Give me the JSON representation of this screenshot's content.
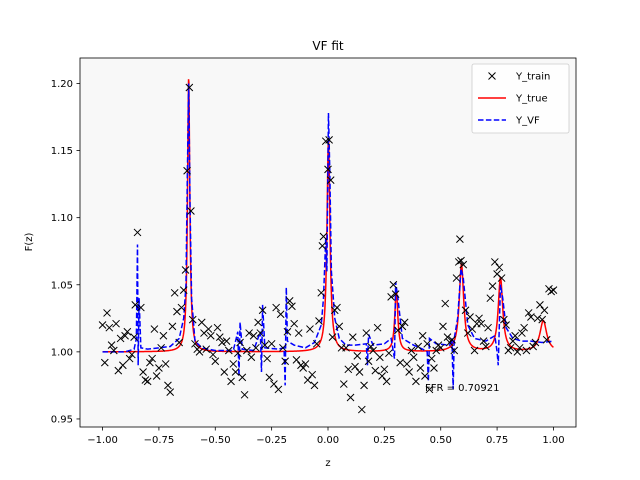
{
  "chart_data": {
    "type": "line",
    "title": "VF fit",
    "xlabel": "z",
    "ylabel": "F(z)",
    "xlim": [
      -1.1,
      1.1
    ],
    "ylim": [
      0.944,
      1.219
    ],
    "xticks": [
      -1.0,
      -0.75,
      -0.5,
      -0.25,
      0.0,
      0.25,
      0.5,
      0.75,
      1.0
    ],
    "xtick_labels": [
      "−1.00",
      "−0.75",
      "−0.50",
      "−0.25",
      "0.00",
      "0.25",
      "0.50",
      "0.75",
      "1.00"
    ],
    "yticks": [
      0.95,
      1.0,
      1.05,
      1.1,
      1.15,
      1.2
    ],
    "ytick_labels": [
      "0.95",
      "1.00",
      "1.05",
      "1.10",
      "1.15",
      "1.20"
    ],
    "grid": false,
    "legend_position": "top-right",
    "background": "#f8f8f8",
    "annotation": "FFR = 0.70921",
    "annotation_pos": {
      "x": 0.43,
      "y": 0.971
    },
    "series": [
      {
        "name": "Y_train",
        "style": "markers",
        "marker": "x",
        "color": "#000000",
        "points": [
          [
            -1.0,
            1.02
          ],
          [
            -0.99,
            0.992
          ],
          [
            -0.98,
            1.029
          ],
          [
            -0.97,
            1.018
          ],
          [
            -0.96,
            1.005
          ],
          [
            -0.95,
            1.001
          ],
          [
            -0.94,
            1.021
          ],
          [
            -0.93,
            0.986
          ],
          [
            -0.92,
            1.01
          ],
          [
            -0.91,
            0.99
          ],
          [
            -0.9,
            1.012
          ],
          [
            -0.89,
            1.015
          ],
          [
            -0.88,
            0.995
          ],
          [
            -0.87,
            0.998
          ],
          [
            -0.86,
            1.011
          ],
          [
            -0.855,
            1.035
          ],
          [
            -0.845,
            1.089
          ],
          [
            -0.83,
            1.033
          ],
          [
            -0.82,
            0.985
          ],
          [
            -0.81,
            0.979
          ],
          [
            -0.8,
            0.978
          ],
          [
            -0.79,
            0.992
          ],
          [
            -0.78,
            0.995
          ],
          [
            -0.77,
            1.017
          ],
          [
            -0.76,
            0.982
          ],
          [
            -0.75,
            0.988
          ],
          [
            -0.74,
            1.003
          ],
          [
            -0.73,
            1.012
          ],
          [
            -0.72,
            0.991
          ],
          [
            -0.71,
            0.975
          ],
          [
            -0.7,
            0.97
          ],
          [
            -0.69,
            1.019
          ],
          [
            -0.68,
            1.044
          ],
          [
            -0.67,
            1.03
          ],
          [
            -0.66,
            1.007
          ],
          [
            -0.65,
            1.033
          ],
          [
            -0.64,
            1.046
          ],
          [
            -0.632,
            1.061
          ],
          [
            -0.625,
            1.135
          ],
          [
            -0.615,
            1.197
          ],
          [
            -0.608,
            1.105
          ],
          [
            -0.6,
            1.024
          ],
          [
            -0.59,
            1.006
          ],
          [
            -0.58,
            1.002
          ],
          [
            -0.57,
            1.0
          ],
          [
            -0.56,
            1.022
          ],
          [
            -0.55,
            1.014
          ],
          [
            -0.54,
            1.002
          ],
          [
            -0.53,
            1.017
          ],
          [
            -0.52,
            1.012
          ],
          [
            -0.51,
            0.998
          ],
          [
            -0.5,
            0.993
          ],
          [
            -0.49,
            1.018
          ],
          [
            -0.48,
            1.011
          ],
          [
            -0.47,
            1.007
          ],
          [
            -0.46,
            0.985
          ],
          [
            -0.45,
            1.008
          ],
          [
            -0.44,
            1.001
          ],
          [
            -0.43,
            0.978
          ],
          [
            -0.42,
            0.991
          ],
          [
            -0.41,
            0.985
          ],
          [
            -0.4,
            0.999
          ],
          [
            -0.39,
            1.007
          ],
          [
            -0.38,
            0.981
          ],
          [
            -0.37,
            0.968
          ],
          [
            -0.36,
            1.001
          ],
          [
            -0.35,
            1.014
          ],
          [
            -0.34,
            0.996
          ],
          [
            -0.33,
            1.012
          ],
          [
            -0.32,
            1.003
          ],
          [
            -0.31,
            1.022
          ],
          [
            -0.3,
            1.014
          ],
          [
            -0.29,
            1.031
          ],
          [
            -0.28,
            1.005
          ],
          [
            -0.27,
            0.995
          ],
          [
            -0.26,
            0.981
          ],
          [
            -0.25,
            1.006
          ],
          [
            -0.24,
            0.976
          ],
          [
            -0.23,
            1.033
          ],
          [
            -0.22,
            0.972
          ],
          [
            -0.21,
            1.028
          ],
          [
            -0.2,
            1.003
          ],
          [
            -0.19,
            0.993
          ],
          [
            -0.18,
            1.015
          ],
          [
            -0.17,
            1.038
          ],
          [
            -0.16,
            1.034
          ],
          [
            -0.15,
            1.021
          ],
          [
            -0.14,
            0.994
          ],
          [
            -0.13,
            1.014
          ],
          [
            -0.12,
            0.99
          ],
          [
            -0.11,
            0.988
          ],
          [
            -0.1,
            0.991
          ],
          [
            -0.09,
            0.979
          ],
          [
            -0.08,
            1.017
          ],
          [
            -0.07,
            0.983
          ],
          [
            -0.06,
            0.975
          ],
          [
            -0.05,
            1.006
          ],
          [
            -0.04,
            1.023
          ],
          [
            -0.03,
            1.044
          ],
          [
            -0.025,
            1.079
          ],
          [
            -0.02,
            1.086
          ],
          [
            -0.01,
            1.157
          ],
          [
            0.0,
            1.136
          ],
          [
            0.005,
            1.158
          ],
          [
            0.012,
            1.128
          ],
          [
            0.02,
            1.011
          ],
          [
            0.03,
            1.031
          ],
          [
            0.04,
            1.033
          ],
          [
            0.05,
            1.019
          ],
          [
            0.06,
            1.003
          ],
          [
            0.07,
            0.976
          ],
          [
            0.08,
            1.003
          ],
          [
            0.09,
            0.987
          ],
          [
            0.1,
            0.966
          ],
          [
            0.11,
            1.011
          ],
          [
            0.12,
            0.989
          ],
          [
            0.13,
            0.997
          ],
          [
            0.14,
            0.985
          ],
          [
            0.15,
            0.957
          ],
          [
            0.16,
            0.975
          ],
          [
            0.17,
            1.014
          ],
          [
            0.18,
            0.993
          ],
          [
            0.19,
            1.004
          ],
          [
            0.2,
            1.001
          ],
          [
            0.21,
            0.986
          ],
          [
            0.22,
            1.018
          ],
          [
            0.23,
            0.996
          ],
          [
            0.24,
            0.982
          ],
          [
            0.25,
            0.987
          ],
          [
            0.26,
            0.978
          ],
          [
            0.27,
            0.999
          ],
          [
            0.28,
            1.041
          ],
          [
            0.29,
            1.05
          ],
          [
            0.3,
            1.043
          ],
          [
            0.31,
            1.016
          ],
          [
            0.32,
            0.992
          ],
          [
            0.33,
            1.019
          ],
          [
            0.34,
            1.022
          ],
          [
            0.35,
            0.991
          ],
          [
            0.36,
            0.985
          ],
          [
            0.37,
            1.001
          ],
          [
            0.38,
            0.996
          ],
          [
            0.39,
            0.978
          ],
          [
            0.4,
            1.004
          ],
          [
            0.41,
            0.988
          ],
          [
            0.42,
            1.012
          ],
          [
            0.43,
            0.982
          ],
          [
            0.44,
            1.006
          ],
          [
            0.45,
            0.972
          ],
          [
            0.46,
            0.995
          ],
          [
            0.47,
            0.988
          ],
          [
            0.48,
            1.001
          ],
          [
            0.49,
            1.005
          ],
          [
            0.5,
            1.003
          ],
          [
            0.51,
            1.019
          ],
          [
            0.52,
            1.036
          ],
          [
            0.53,
            1.011
          ],
          [
            0.54,
            1.007
          ],
          [
            0.55,
            1.009
          ],
          [
            0.56,
            1.001
          ],
          [
            0.57,
            1.055
          ],
          [
            0.58,
            1.067
          ],
          [
            0.585,
            1.084
          ],
          [
            0.59,
            1.068
          ],
          [
            0.6,
            1.065
          ],
          [
            0.61,
            1.031
          ],
          [
            0.62,
            1.014
          ],
          [
            0.63,
            1.026
          ],
          [
            0.64,
            1.017
          ],
          [
            0.65,
            1.001
          ],
          [
            0.66,
            1.021
          ],
          [
            0.67,
            1.025
          ],
          [
            0.68,
            1.021
          ],
          [
            0.69,
            1.008
          ],
          [
            0.7,
            1.004
          ],
          [
            0.71,
            1.018
          ],
          [
            0.72,
            1.04
          ],
          [
            0.73,
            1.049
          ],
          [
            0.74,
            1.067
          ],
          [
            0.75,
            1.058
          ],
          [
            0.76,
            1.063
          ],
          [
            0.77,
            1.055
          ],
          [
            0.78,
            1.024
          ],
          [
            0.79,
            1.02
          ],
          [
            0.8,
            1.001
          ],
          [
            0.81,
            1.003
          ],
          [
            0.82,
            1.008
          ],
          [
            0.83,
            1.012
          ],
          [
            0.84,
            1.0
          ],
          [
            0.85,
            1.003
          ],
          [
            0.86,
            1.014
          ],
          [
            0.87,
            1.018
          ],
          [
            0.88,
            1.001
          ],
          [
            0.89,
            1.029
          ],
          [
            0.9,
            1.026
          ],
          [
            0.91,
            1.004
          ],
          [
            0.92,
            1.007
          ],
          [
            0.93,
            1.025
          ],
          [
            0.94,
            1.035
          ],
          [
            0.95,
            1.024
          ],
          [
            0.96,
            1.031
          ],
          [
            0.97,
            1.009
          ],
          [
            0.98,
            1.047
          ],
          [
            0.99,
            1.045
          ],
          [
            1.0,
            1.046
          ]
        ]
      },
      {
        "name": "Y_true",
        "style": "line",
        "color": "#ff0000",
        "base": 1.0,
        "peaks": [
          {
            "center": -0.842,
            "height": 0.0,
            "width": 0.004
          },
          {
            "center": -0.618,
            "height": 0.205,
            "width": 0.006
          },
          {
            "center": 0.002,
            "height": 0.158,
            "width": 0.008
          },
          {
            "center": 0.303,
            "height": 0.046,
            "width": 0.008
          },
          {
            "center": 0.592,
            "height": 0.065,
            "width": 0.012
          },
          {
            "center": 0.765,
            "height": 0.055,
            "width": 0.012
          },
          {
            "center": 0.955,
            "height": 0.023,
            "width": 0.018
          }
        ]
      },
      {
        "name": "Y_VF",
        "style": "dashed",
        "color": "#0000ff",
        "points": [
          [
            -1.0,
            1.0
          ],
          [
            -0.9,
            1.0
          ],
          [
            -0.86,
            1.002
          ],
          [
            -0.85,
            1.01
          ],
          [
            -0.845,
            1.08
          ],
          [
            -0.842,
            0.99
          ],
          [
            -0.838,
            1.04
          ],
          [
            -0.83,
            1.003
          ],
          [
            -0.8,
            1.002
          ],
          [
            -0.75,
            1.003
          ],
          [
            -0.7,
            1.004
          ],
          [
            -0.66,
            1.01
          ],
          [
            -0.64,
            1.025
          ],
          [
            -0.63,
            1.05
          ],
          [
            -0.624,
            1.13
          ],
          [
            -0.618,
            1.2
          ],
          [
            -0.612,
            1.11
          ],
          [
            -0.605,
            1.04
          ],
          [
            -0.59,
            1.008
          ],
          [
            -0.56,
            1.003
          ],
          [
            -0.5,
            1.001
          ],
          [
            -0.42,
            1.001
          ],
          [
            -0.4,
            1.015
          ],
          [
            -0.395,
            0.982
          ],
          [
            -0.39,
            1.022
          ],
          [
            -0.38,
            1.002
          ],
          [
            -0.33,
            1.001
          ],
          [
            -0.3,
            1.015
          ],
          [
            -0.295,
            0.985
          ],
          [
            -0.29,
            1.035
          ],
          [
            -0.28,
            1.003
          ],
          [
            -0.22,
            1.002
          ],
          [
            -0.195,
            1.003
          ],
          [
            -0.19,
            0.975
          ],
          [
            -0.185,
            1.048
          ],
          [
            -0.18,
            1.008
          ],
          [
            -0.15,
            1.005
          ],
          [
            -0.1,
            1.003
          ],
          [
            -0.06,
            1.007
          ],
          [
            -0.03,
            1.02
          ],
          [
            -0.02,
            1.04
          ],
          [
            -0.01,
            1.085
          ],
          [
            -0.005,
            1.06
          ],
          [
            0.002,
            1.178
          ],
          [
            0.008,
            1.135
          ],
          [
            0.015,
            1.06
          ],
          [
            0.03,
            1.025
          ],
          [
            0.05,
            1.01
          ],
          [
            0.08,
            1.005
          ],
          [
            0.12,
            1.005
          ],
          [
            0.17,
            1.006
          ],
          [
            0.175,
            0.99
          ],
          [
            0.18,
            1.013
          ],
          [
            0.2,
            1.005
          ],
          [
            0.25,
            1.006
          ],
          [
            0.28,
            1.01
          ],
          [
            0.295,
            0.995
          ],
          [
            0.3,
            1.052
          ],
          [
            0.31,
            1.04
          ],
          [
            0.33,
            1.01
          ],
          [
            0.38,
            1.005
          ],
          [
            0.42,
            1.002
          ],
          [
            0.44,
            1.0
          ],
          [
            0.445,
            0.978
          ],
          [
            0.45,
            1.01
          ],
          [
            0.48,
            1.006
          ],
          [
            0.54,
            1.005
          ],
          [
            0.55,
            1.01
          ],
          [
            0.555,
            0.972
          ],
          [
            0.56,
            1.01
          ],
          [
            0.575,
            1.025
          ],
          [
            0.59,
            1.062
          ],
          [
            0.6,
            1.055
          ],
          [
            0.62,
            1.02
          ],
          [
            0.65,
            1.01
          ],
          [
            0.7,
            1.008
          ],
          [
            0.74,
            1.012
          ],
          [
            0.75,
            1.0
          ],
          [
            0.755,
            0.99
          ],
          [
            0.765,
            1.05
          ],
          [
            0.775,
            1.04
          ],
          [
            0.79,
            1.018
          ],
          [
            0.82,
            1.01
          ],
          [
            0.86,
            1.008
          ],
          [
            0.9,
            1.008
          ],
          [
            0.95,
            1.007
          ],
          [
            1.0,
            1.008
          ]
        ]
      }
    ]
  }
}
